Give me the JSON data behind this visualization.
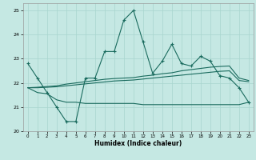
{
  "xlabel": "Humidex (Indice chaleur)",
  "xlim": [
    -0.5,
    23.5
  ],
  "ylim": [
    20,
    25.3
  ],
  "xticks": [
    0,
    1,
    2,
    3,
    4,
    5,
    6,
    7,
    8,
    9,
    10,
    11,
    12,
    13,
    14,
    15,
    16,
    17,
    18,
    19,
    20,
    21,
    22,
    23
  ],
  "yticks": [
    20,
    21,
    22,
    23,
    24,
    25
  ],
  "bg_color": "#c5e8e3",
  "grid_color": "#a8d5ce",
  "line_color": "#1a6b5e",
  "x": [
    0,
    1,
    2,
    3,
    4,
    5,
    6,
    7,
    8,
    9,
    10,
    11,
    12,
    13,
    14,
    15,
    16,
    17,
    18,
    19,
    20,
    21,
    22,
    23
  ],
  "spiky_y": [
    22.8,
    22.2,
    21.6,
    21.0,
    20.4,
    20.4,
    22.2,
    22.2,
    23.3,
    23.3,
    24.6,
    25.0,
    23.7,
    22.4,
    22.9,
    23.6,
    22.8,
    22.7,
    23.1,
    22.9,
    22.3,
    22.2,
    21.8,
    21.2
  ],
  "flat_y": [
    21.8,
    21.6,
    21.55,
    21.3,
    21.2,
    21.2,
    21.15,
    21.15,
    21.15,
    21.15,
    21.15,
    21.15,
    21.1,
    21.1,
    21.1,
    21.1,
    21.1,
    21.1,
    21.1,
    21.1,
    21.1,
    21.1,
    21.1,
    21.2
  ],
  "trend1_y": [
    21.8,
    21.82,
    21.85,
    21.88,
    21.95,
    22.0,
    22.05,
    22.1,
    22.15,
    22.18,
    22.2,
    22.22,
    22.28,
    22.32,
    22.38,
    22.42,
    22.5,
    22.55,
    22.6,
    22.65,
    22.68,
    22.7,
    22.2,
    22.1
  ],
  "trend2_y": [
    21.8,
    21.8,
    21.82,
    21.84,
    21.88,
    21.92,
    21.96,
    22.0,
    22.04,
    22.08,
    22.1,
    22.12,
    22.16,
    22.2,
    22.24,
    22.28,
    22.32,
    22.36,
    22.4,
    22.44,
    22.48,
    22.5,
    22.1,
    22.05
  ]
}
